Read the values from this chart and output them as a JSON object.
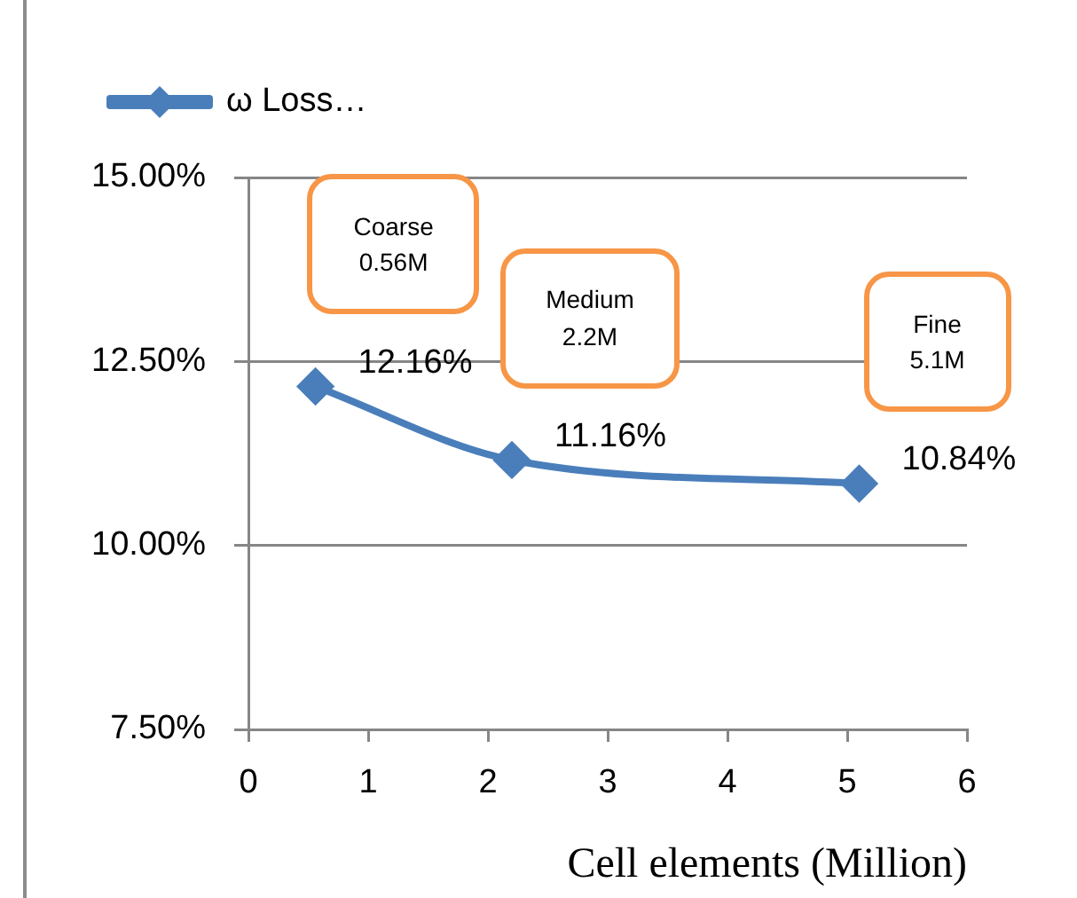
{
  "chart_data": {
    "type": "line",
    "xlabel": "Cell elements (Million)",
    "x": [
      0.56,
      2.2,
      5.1
    ],
    "series": [
      {
        "name": "ω Loss…",
        "color": "#4a7ebb",
        "values": [
          12.16,
          11.16,
          10.84
        ],
        "value_labels": [
          "12.16%",
          "11.16%",
          "10.84%"
        ]
      }
    ],
    "xlim": [
      0,
      6
    ],
    "xticks": [
      0,
      1,
      2,
      3,
      4,
      5,
      6
    ],
    "ylim": [
      7.5,
      15
    ],
    "yticks": [
      {
        "value": 7.5,
        "label": "7.50%"
      },
      {
        "value": 10,
        "label": "10.00%"
      },
      {
        "value": 12.5,
        "label": "12.50%"
      },
      {
        "value": 15,
        "label": "15.00%"
      }
    ],
    "grid": "y",
    "legend": "top left",
    "marker": "diamond",
    "line_style": "solid",
    "annotations": [
      "Coarse\n0.56M",
      "Medium\n2.2M",
      "Fine\n5.1M"
    ]
  }
}
